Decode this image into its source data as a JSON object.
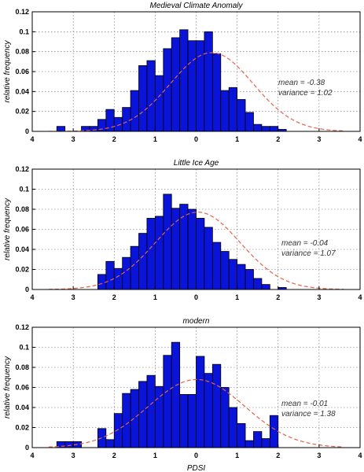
{
  "colors": {
    "bar_fill": "#0a14d8",
    "bar_stroke": "#000000",
    "fit_line": "#e0654a",
    "grid": "#666666"
  },
  "xlabel": "PDSI",
  "chart_data": [
    {
      "type": "bar",
      "title": "Medieval Climate Anomaly",
      "ylabel": "relative frequency",
      "xlim": [
        4,
        -4
      ],
      "ylim": [
        0,
        0.12
      ],
      "xticks": [
        4,
        3,
        2,
        1,
        0,
        1,
        2,
        3,
        4
      ],
      "yticks": [
        "0",
        "0.02",
        "0.04",
        "0.06",
        "0.08",
        "0.1",
        "0.12"
      ],
      "bin_width": 0.2,
      "bin_start": 3.4,
      "values": [
        0.005,
        0,
        0,
        0.005,
        0.005,
        0.012,
        0.022,
        0.014,
        0.024,
        0.041,
        0.066,
        0.071,
        0.056,
        0.083,
        0.094,
        0.102,
        0.091,
        0.091,
        0.1,
        0.078,
        0.041,
        0.044,
        0.032,
        0.019,
        0.007,
        0.005,
        0.005,
        0.002
      ],
      "fit": {
        "mean": -0.38,
        "variance": 1.02
      },
      "annotations": [
        "mean      = -0.38",
        "variance = 1.02"
      ]
    },
    {
      "type": "bar",
      "title": "Little Ice Age",
      "ylabel": "relative frequency",
      "xlim": [
        4,
        -4
      ],
      "ylim": [
        0,
        0.12
      ],
      "xticks": [
        4,
        3,
        2,
        1,
        0,
        1,
        2,
        3,
        4
      ],
      "yticks": [
        "0",
        "0.02",
        "0.04",
        "0.06",
        "0.08",
        "0.1",
        "0.12"
      ],
      "bin_width": 0.2,
      "bin_start": 2.4,
      "values": [
        0.015,
        0.028,
        0.021,
        0.032,
        0.043,
        0.056,
        0.071,
        0.073,
        0.095,
        0.081,
        0.085,
        0.08,
        0.071,
        0.062,
        0.047,
        0.038,
        0.03,
        0.025,
        0.02,
        0.011,
        0.005,
        0,
        0.002
      ],
      "fit": {
        "mean": -0.04,
        "variance": 1.07
      },
      "annotations": [
        "mean      = -0.04",
        "variance = 1.07"
      ]
    },
    {
      "type": "bar",
      "title": "modern",
      "ylabel": "relative frequency",
      "xlim": [
        4,
        -4
      ],
      "ylim": [
        0,
        0.12
      ],
      "xticks": [
        4,
        3,
        2,
        1,
        0,
        1,
        2,
        3,
        4
      ],
      "yticks": [
        "0",
        "0.02",
        "0.04",
        "0.06",
        "0.08",
        "0.1",
        "0.12"
      ],
      "bin_width": 0.2,
      "bin_start": 3.4,
      "values": [
        0.006,
        0.006,
        0.006,
        0,
        0,
        0.019,
        0.008,
        0.034,
        0.054,
        0.058,
        0.066,
        0.072,
        0.061,
        0.092,
        0.105,
        0.053,
        0.053,
        0.091,
        0.074,
        0.083,
        0.06,
        0.04,
        0.024,
        0.007,
        0.016,
        0.009,
        0.032
      ],
      "fit": {
        "mean": -0.01,
        "variance": 1.38
      },
      "annotations": [
        "mean      = -0.01",
        "variance = 1.38"
      ]
    }
  ]
}
